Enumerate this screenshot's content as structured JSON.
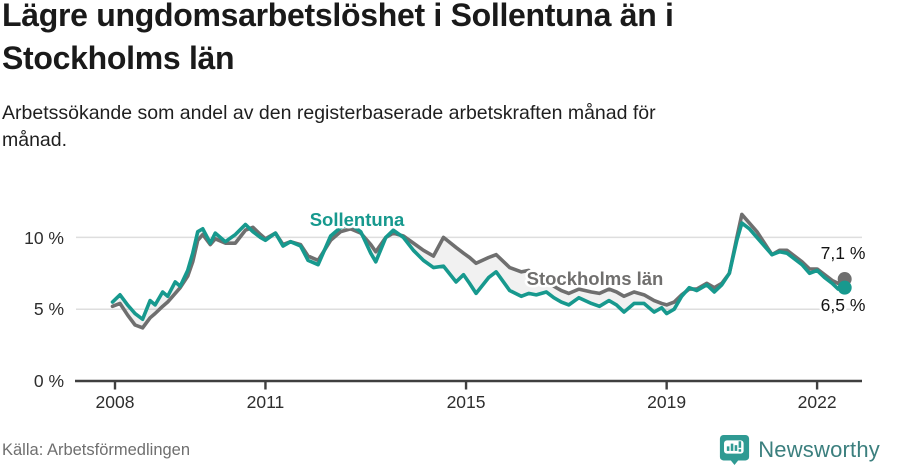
{
  "title": "Lägre ungdomsarbetslöshet i Sollentuna än i Stockholms län",
  "subtitle": "Arbetssökande som andel av den registerbaserade arbetskraften månad för månad.",
  "source": "Källa: Arbetsförmedlingen",
  "branding": {
    "name": "Newsworthy",
    "icon": "bar-chart-badge-icon",
    "icon_color": "#2F9A93",
    "text_color": "#3B7F7E"
  },
  "chart_data": {
    "type": "line",
    "title": "Lägre ungdomsarbetslöshet i Sollentuna än i Stockholms län",
    "xlabel": "",
    "ylabel": "Arbetssökande som andel av den registerbaserade arbetskraften",
    "unit": "%",
    "grid": "horizontal",
    "legend_position": "inline-labels",
    "xlim": [
      2007.9,
      2022.95
    ],
    "ylim": [
      0,
      12.6
    ],
    "x_ticks": [
      {
        "value": 2008,
        "label": "2008"
      },
      {
        "value": 2011,
        "label": "2011"
      },
      {
        "value": 2015,
        "label": "2015"
      },
      {
        "value": 2019,
        "label": "2019"
      },
      {
        "value": 2022,
        "label": "2022"
      }
    ],
    "y_ticks": [
      {
        "value": 0,
        "label": "0 %"
      },
      {
        "value": 5,
        "label": "5 %"
      },
      {
        "value": 10,
        "label": "10 %"
      }
    ],
    "fill_between_color": "rgba(0,0,0,0.055)",
    "x": [
      2007.95,
      2008.1,
      2008.25,
      2008.4,
      2008.55,
      2008.7,
      2008.8,
      2008.95,
      2009.05,
      2009.2,
      2009.3,
      2009.45,
      2009.55,
      2009.65,
      2009.75,
      2009.9,
      2010.0,
      2010.2,
      2010.4,
      2010.6,
      2010.75,
      2010.9,
      2011.0,
      2011.2,
      2011.35,
      2011.5,
      2011.7,
      2011.85,
      2012.05,
      2012.3,
      2012.5,
      2012.7,
      2012.9,
      2013.1,
      2013.2,
      2013.4,
      2013.55,
      2013.75,
      2013.95,
      2014.15,
      2014.35,
      2014.55,
      2014.8,
      2014.95,
      2015.07,
      2015.2,
      2015.45,
      2015.6,
      2015.87,
      2016.1,
      2016.25,
      2016.4,
      2016.6,
      2016.75,
      2016.9,
      2017.05,
      2017.25,
      2017.5,
      2017.66,
      2017.85,
      2018.0,
      2018.15,
      2018.35,
      2018.55,
      2018.75,
      2018.9,
      2019.0,
      2019.15,
      2019.3,
      2019.45,
      2019.6,
      2019.8,
      2019.95,
      2020.1,
      2020.25,
      2020.4,
      2020.5,
      2020.65,
      2020.8,
      2020.95,
      2021.1,
      2021.25,
      2021.4,
      2021.55,
      2021.7,
      2021.85,
      2022.0,
      2022.15,
      2022.3,
      2022.42,
      2022.55
    ],
    "series": [
      {
        "name": "Sollentuna",
        "color": "#17998E",
        "end_value": 6.5,
        "end_label": "6,5 %",
        "values": [
          5.5,
          6.0,
          5.3,
          4.7,
          4.3,
          5.6,
          5.3,
          6.2,
          5.9,
          6.9,
          6.6,
          7.7,
          8.9,
          10.4,
          10.6,
          9.6,
          10.3,
          9.7,
          10.2,
          10.9,
          10.4,
          10.0,
          9.8,
          10.3,
          9.4,
          9.7,
          9.4,
          8.4,
          8.1,
          10.1,
          10.7,
          10.9,
          10.4,
          8.9,
          8.3,
          10.0,
          10.5,
          10.0,
          9.1,
          8.4,
          7.9,
          8.0,
          6.9,
          7.4,
          6.8,
          6.1,
          7.2,
          7.6,
          6.3,
          5.9,
          6.1,
          6.0,
          6.2,
          5.8,
          5.5,
          5.3,
          5.8,
          5.4,
          5.2,
          5.6,
          5.3,
          4.8,
          5.4,
          5.4,
          4.8,
          5.1,
          4.7,
          5.0,
          5.9,
          6.5,
          6.3,
          6.7,
          6.2,
          6.7,
          7.5,
          9.8,
          11.0,
          10.6,
          10.0,
          9.4,
          8.8,
          9.0,
          8.9,
          8.5,
          8.1,
          7.5,
          7.7,
          7.2,
          6.8,
          6.4,
          6.5
        ]
      },
      {
        "name": "Stockholms län",
        "color": "#6F6F6F",
        "end_value": 7.1,
        "end_label": "7,1 %",
        "values": [
          5.2,
          5.4,
          4.6,
          3.9,
          3.7,
          4.4,
          4.7,
          5.2,
          5.5,
          6.1,
          6.5,
          7.3,
          8.3,
          9.8,
          10.2,
          9.5,
          9.9,
          9.6,
          9.6,
          10.5,
          10.7,
          10.2,
          9.9,
          10.3,
          9.5,
          9.7,
          9.5,
          8.7,
          8.4,
          9.8,
          10.4,
          10.6,
          10.3,
          9.5,
          9.0,
          10.0,
          10.3,
          10.1,
          9.6,
          9.1,
          8.7,
          10.0,
          9.3,
          8.9,
          8.6,
          8.2,
          8.6,
          8.8,
          7.9,
          7.6,
          7.7,
          7.2,
          6.8,
          6.6,
          6.3,
          6.1,
          6.4,
          6.2,
          6.1,
          6.4,
          6.2,
          5.9,
          6.2,
          6.0,
          5.6,
          5.4,
          5.3,
          5.5,
          6.0,
          6.4,
          6.4,
          6.8,
          6.5,
          6.8,
          7.5,
          10.0,
          11.6,
          11.0,
          10.4,
          9.6,
          8.8,
          9.1,
          9.1,
          8.7,
          8.3,
          7.8,
          7.8,
          7.4,
          7.0,
          6.8,
          7.1
        ]
      }
    ]
  }
}
